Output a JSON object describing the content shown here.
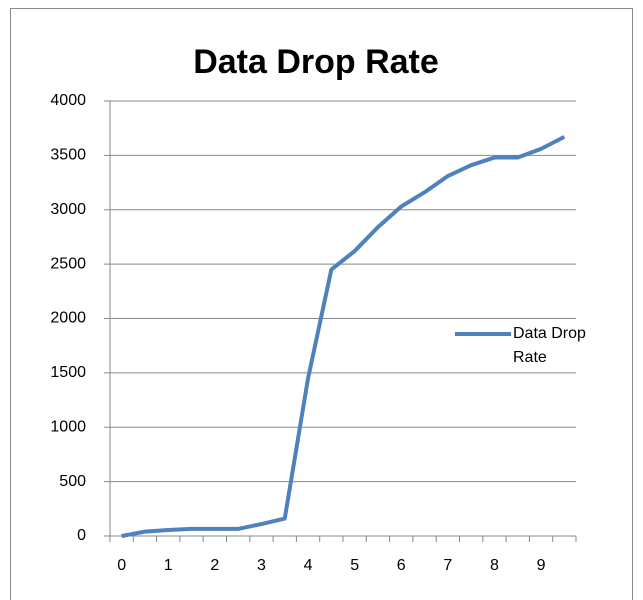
{
  "chart_data": {
    "type": "line",
    "title": "Data Drop Rate",
    "categories": [
      "0",
      null,
      "1",
      null,
      "2",
      null,
      "3",
      null,
      "4",
      null,
      "5",
      null,
      "6",
      null,
      "7",
      null,
      "8",
      null,
      "9",
      null
    ],
    "series": [
      {
        "name": "Data Drop Rate",
        "color": "#4f81bd",
        "values": [
          0,
          40,
          55,
          65,
          65,
          65,
          110,
          160,
          1450,
          2450,
          2620,
          2840,
          3030,
          3160,
          3310,
          3410,
          3480,
          3480,
          3560,
          3670
        ]
      }
    ],
    "ylim": [
      0,
      4000
    ],
    "yticks": [
      0,
      500,
      1000,
      1500,
      2000,
      2500,
      3000,
      3500,
      4000
    ],
    "grid": true,
    "legend": "right"
  }
}
